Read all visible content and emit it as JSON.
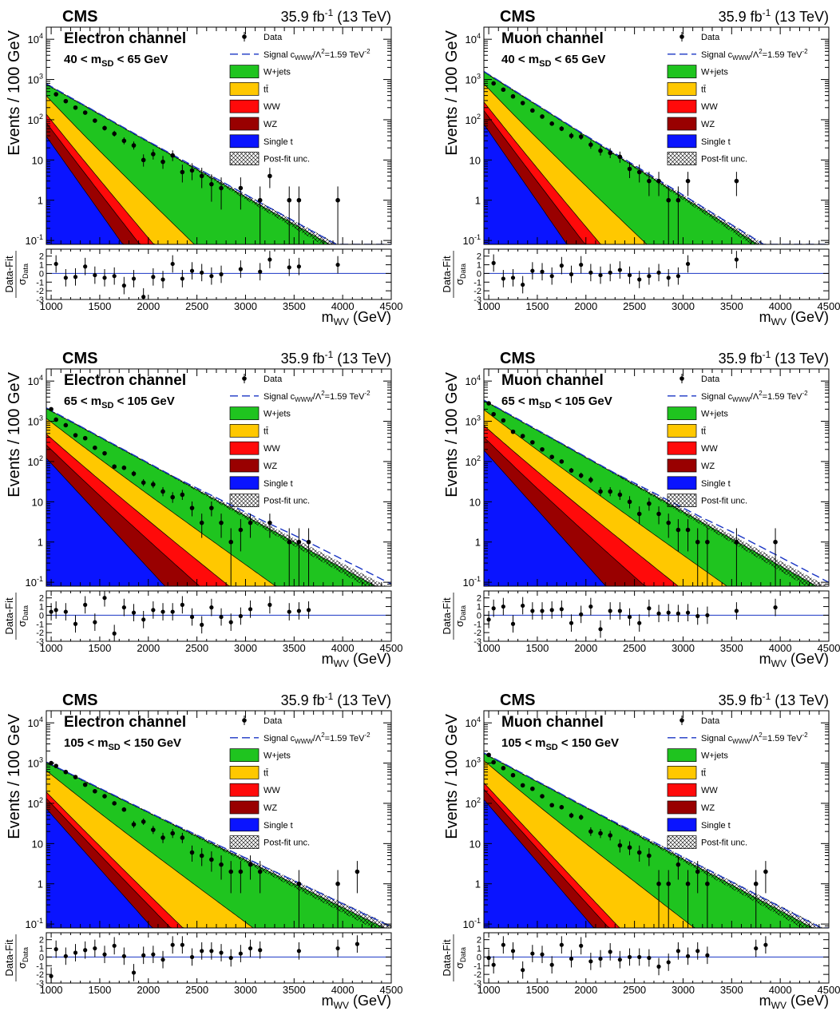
{
  "common": {
    "experiment": "CMS",
    "lumi": "35.9 fb",
    "lumi_sup": "-1",
    "energy": "(13 TeV)",
    "ylabel": "Events / 100 GeV",
    "xlabel_main": "m",
    "xlabel_sub": "WV",
    "xlabel_unit": "(GeV)",
    "ratio_label_top": "Data-Fit",
    "ratio_label_bottom_main": "σ",
    "ratio_label_bottom_sub": "Data",
    "x_ticks": [
      1000,
      1500,
      2000,
      2500,
      3000,
      3500,
      4000,
      4500
    ],
    "y_ticks": [
      {
        "value": 0.1,
        "label": "10",
        "sup": "-1"
      },
      {
        "value": 1,
        "label": "1",
        "sup": ""
      },
      {
        "value": 10,
        "label": "10",
        "sup": ""
      },
      {
        "value": 100,
        "label": "10",
        "sup": "2"
      },
      {
        "value": 1000,
        "label": "10",
        "sup": "3"
      },
      {
        "value": 10000,
        "label": "10",
        "sup": "4"
      }
    ],
    "ratio_ticks": [
      2,
      1,
      0,
      -1,
      -2,
      -3
    ],
    "xlim": [
      950,
      4500
    ],
    "ylim": [
      0.08,
      20000
    ],
    "ratio_ylim": [
      -3,
      2.8
    ],
    "legend": [
      {
        "label": "Data",
        "kind": "data"
      },
      {
        "label": "Signal c",
        "sub": "WWW",
        "rest": "/Λ",
        "sup": "2",
        "tail": "=1.59 TeV",
        "tailsup": "-2",
        "kind": "signal",
        "color": "#1a35c4"
      },
      {
        "label": "W+jets",
        "kind": "fill",
        "color": "#1fc41f"
      },
      {
        "label": "tt̄",
        "kind": "fill",
        "color": "#ffc800"
      },
      {
        "label": "WW",
        "kind": "fill",
        "color": "#ff0a0a"
      },
      {
        "label": "WZ",
        "kind": "fill",
        "color": "#990000"
      },
      {
        "label": "Single t",
        "kind": "fill",
        "color": "#0a14ff"
      },
      {
        "label": "Post-fit unc.",
        "kind": "hatch"
      }
    ]
  },
  "chart_data": [
    {
      "type": "area",
      "channel": "Electron channel",
      "cut": {
        "lo": "40",
        "var": "m",
        "sub": "SD",
        "hi": "65",
        "unit": "GeV"
      },
      "log_y": true,
      "model": {
        "n0": 650,
        "decay": 0.00314,
        "signal_mult": 1.12,
        "sig_start": 2000,
        "fractions": {
          "tt": 0.3,
          "ww": 0.06,
          "wz": 0.05,
          "st": 0.04
        },
        "slopes": {
          "tt": 1.7,
          "ww": 2.0,
          "wz": 2.2,
          "st": 2.5
        }
      },
      "data_points": [
        {
          "x": 1050,
          "y": 430,
          "r": 1.1
        },
        {
          "x": 1150,
          "y": 290,
          "r": -0.5
        },
        {
          "x": 1250,
          "y": 200,
          "r": -0.4
        },
        {
          "x": 1350,
          "y": 150,
          "r": 0.8
        },
        {
          "x": 1450,
          "y": 95,
          "r": -0.2
        },
        {
          "x": 1550,
          "y": 62,
          "r": -0.5
        },
        {
          "x": 1650,
          "y": 45,
          "r": -0.3
        },
        {
          "x": 1750,
          "y": 30,
          "r": -1.4
        },
        {
          "x": 1850,
          "y": 23,
          "r": -0.6
        },
        {
          "x": 1950,
          "y": 10,
          "r": -2.7
        },
        {
          "x": 2050,
          "y": 14,
          "r": -0.4
        },
        {
          "x": 2150,
          "y": 9,
          "r": -0.7
        },
        {
          "x": 2250,
          "y": 13,
          "r": 1.1
        },
        {
          "x": 2350,
          "y": 5,
          "r": -0.6
        },
        {
          "x": 2450,
          "y": 5.5,
          "r": 0.3
        },
        {
          "x": 2550,
          "y": 4,
          "r": 0.1
        },
        {
          "x": 2650,
          "y": 2.5,
          "r": -0.3
        },
        {
          "x": 2750,
          "y": 2,
          "r": -0.1
        },
        {
          "x": 2950,
          "y": 2,
          "r": 0.5
        },
        {
          "x": 3150,
          "y": 1,
          "r": 0.2
        },
        {
          "x": 3250,
          "y": 4,
          "r": 1.6
        },
        {
          "x": 3450,
          "y": 1,
          "r": 0.7
        },
        {
          "x": 3550,
          "y": 1,
          "r": 0.8
        },
        {
          "x": 3950,
          "y": 1,
          "r": 1.0
        }
      ]
    },
    {
      "type": "area",
      "channel": "Muon channel",
      "cut": {
        "lo": "40",
        "var": "m",
        "sub": "SD",
        "hi": "65",
        "unit": "GeV"
      },
      "log_y": true,
      "model": {
        "n0": 1300,
        "decay": 0.0035,
        "signal_mult": 1.12,
        "sig_start": 2000,
        "fractions": {
          "tt": 0.3,
          "ww": 0.06,
          "wz": 0.05,
          "st": 0.04
        },
        "slopes": {
          "tt": 1.5,
          "ww": 1.8,
          "wz": 2.0,
          "st": 2.3
        }
      },
      "data_points": [
        {
          "x": 1050,
          "y": 800,
          "r": 1.2
        },
        {
          "x": 1150,
          "y": 560,
          "r": -0.6
        },
        {
          "x": 1250,
          "y": 380,
          "r": -0.5
        },
        {
          "x": 1350,
          "y": 260,
          "r": -1.3
        },
        {
          "x": 1450,
          "y": 170,
          "r": 0.3
        },
        {
          "x": 1550,
          "y": 120,
          "r": 0.2
        },
        {
          "x": 1650,
          "y": 80,
          "r": -0.3
        },
        {
          "x": 1750,
          "y": 60,
          "r": 0.9
        },
        {
          "x": 1850,
          "y": 40,
          "r": -0.1
        },
        {
          "x": 1950,
          "y": 38,
          "r": 1.0
        },
        {
          "x": 2050,
          "y": 24,
          "r": 0.1
        },
        {
          "x": 2150,
          "y": 17,
          "r": -0.2
        },
        {
          "x": 2250,
          "y": 15,
          "r": 0.1
        },
        {
          "x": 2350,
          "y": 12,
          "r": 0.4
        },
        {
          "x": 2450,
          "y": 6,
          "r": -0.2
        },
        {
          "x": 2550,
          "y": 5,
          "r": -0.7
        },
        {
          "x": 2650,
          "y": 3,
          "r": -0.3
        },
        {
          "x": 2750,
          "y": 3,
          "r": 0.1
        },
        {
          "x": 2850,
          "y": 1,
          "r": -0.5
        },
        {
          "x": 2950,
          "y": 1,
          "r": -0.3
        },
        {
          "x": 3050,
          "y": 3,
          "r": 1.1
        },
        {
          "x": 3550,
          "y": 3,
          "r": 1.6
        }
      ]
    },
    {
      "type": "area",
      "channel": "Electron channel",
      "cut": {
        "lo": "65",
        "var": "m",
        "sub": "SD",
        "hi": "105",
        "unit": "GeV"
      },
      "log_y": true,
      "model": {
        "n0": 1800,
        "decay": 0.003,
        "signal_mult": 1.35,
        "sig_start": 2300,
        "fractions": {
          "tt": 0.32,
          "ww": 0.1,
          "wz": 0.06,
          "st": 0.05
        },
        "slopes": {
          "tt": 1.3,
          "ww": 1.45,
          "wz": 1.6,
          "st": 2.0
        }
      },
      "data_points": [
        {
          "x": 1000,
          "y": 2000,
          "r": 0.4
        },
        {
          "x": 1050,
          "y": 1100,
          "r": 0.6
        },
        {
          "x": 1150,
          "y": 800,
          "r": 0.4
        },
        {
          "x": 1250,
          "y": 450,
          "r": -1.0
        },
        {
          "x": 1350,
          "y": 380,
          "r": 1.2
        },
        {
          "x": 1450,
          "y": 220,
          "r": -0.8
        },
        {
          "x": 1550,
          "y": 160,
          "r": 2.0
        },
        {
          "x": 1650,
          "y": 75,
          "r": -2.1
        },
        {
          "x": 1750,
          "y": 70,
          "r": 0.9
        },
        {
          "x": 1850,
          "y": 50,
          "r": 0.3
        },
        {
          "x": 1950,
          "y": 30,
          "r": -0.5
        },
        {
          "x": 2050,
          "y": 27,
          "r": 0.6
        },
        {
          "x": 2150,
          "y": 18,
          "r": 0.4
        },
        {
          "x": 2250,
          "y": 13,
          "r": 0.4
        },
        {
          "x": 2350,
          "y": 15,
          "r": 1.2
        },
        {
          "x": 2450,
          "y": 7,
          "r": -0.2
        },
        {
          "x": 2550,
          "y": 3,
          "r": -1.1
        },
        {
          "x": 2650,
          "y": 7,
          "r": 0.9
        },
        {
          "x": 2750,
          "y": 3,
          "r": -0.2
        },
        {
          "x": 2850,
          "y": 1,
          "r": -0.8
        },
        {
          "x": 2950,
          "y": 2,
          "r": -0.1
        },
        {
          "x": 3050,
          "y": 3,
          "r": 0.7
        },
        {
          "x": 3250,
          "y": 3,
          "r": 1.2
        },
        {
          "x": 3450,
          "y": 1,
          "r": 0.4
        },
        {
          "x": 3550,
          "y": 1,
          "r": 0.5
        },
        {
          "x": 3650,
          "y": 1,
          "r": 0.6
        }
      ]
    },
    {
      "type": "area",
      "channel": "Muon channel",
      "cut": {
        "lo": "65",
        "var": "m",
        "sub": "SD",
        "hi": "105",
        "unit": "GeV"
      },
      "log_y": true,
      "model": {
        "n0": 2800,
        "decay": 0.0031,
        "signal_mult": 1.35,
        "sig_start": 2300,
        "fractions": {
          "tt": 0.34,
          "ww": 0.11,
          "wz": 0.06,
          "st": 0.05
        },
        "slopes": {
          "tt": 1.25,
          "ww": 1.4,
          "wz": 1.55,
          "st": 2.0
        }
      },
      "data_points": [
        {
          "x": 1000,
          "y": 2800,
          "r": -0.5
        },
        {
          "x": 1050,
          "y": 1500,
          "r": 0.8
        },
        {
          "x": 1150,
          "y": 1050,
          "r": 1.0
        },
        {
          "x": 1250,
          "y": 550,
          "r": -1.0
        },
        {
          "x": 1350,
          "y": 430,
          "r": 1.1
        },
        {
          "x": 1450,
          "y": 300,
          "r": 0.5
        },
        {
          "x": 1550,
          "y": 200,
          "r": 0.5
        },
        {
          "x": 1650,
          "y": 130,
          "r": 0.6
        },
        {
          "x": 1750,
          "y": 100,
          "r": 0.7
        },
        {
          "x": 1850,
          "y": 60,
          "r": -0.9
        },
        {
          "x": 1950,
          "y": 45,
          "r": 0.1
        },
        {
          "x": 2050,
          "y": 35,
          "r": 1.0
        },
        {
          "x": 2150,
          "y": 18,
          "r": -1.6
        },
        {
          "x": 2250,
          "y": 18,
          "r": 0.5
        },
        {
          "x": 2350,
          "y": 15,
          "r": 0.5
        },
        {
          "x": 2450,
          "y": 10,
          "r": -0.2
        },
        {
          "x": 2550,
          "y": 5,
          "r": -0.9
        },
        {
          "x": 2650,
          "y": 9,
          "r": 0.8
        },
        {
          "x": 2750,
          "y": 5,
          "r": 0.2
        },
        {
          "x": 2850,
          "y": 3,
          "r": 0.3
        },
        {
          "x": 2950,
          "y": 2,
          "r": 0.2
        },
        {
          "x": 3050,
          "y": 2,
          "r": 0.3
        },
        {
          "x": 3150,
          "y": 1,
          "r": -0.1
        },
        {
          "x": 3250,
          "y": 1,
          "r": 0.0
        },
        {
          "x": 3550,
          "y": 1,
          "r": 0.5
        },
        {
          "x": 3950,
          "y": 1,
          "r": 0.9
        }
      ]
    },
    {
      "type": "area",
      "channel": "Electron channel",
      "cut": {
        "lo": "105",
        "var": "m",
        "sub": "SD",
        "hi": "150",
        "unit": "GeV"
      },
      "log_y": true,
      "model": {
        "n0": 900,
        "decay": 0.00272,
        "signal_mult": 1.12,
        "sig_start": 2100,
        "fractions": {
          "tt": 0.42,
          "ww": 0.05,
          "wz": 0.05,
          "st": 0.06
        },
        "slopes": {
          "tt": 1.5,
          "ww": 1.9,
          "wz": 2.0,
          "st": 2.3
        }
      },
      "data_points": [
        {
          "x": 1000,
          "y": 1000,
          "r": -2.2
        },
        {
          "x": 1050,
          "y": 850,
          "r": 0.9
        },
        {
          "x": 1150,
          "y": 600,
          "r": 0.1
        },
        {
          "x": 1250,
          "y": 450,
          "r": 0.5
        },
        {
          "x": 1350,
          "y": 290,
          "r": 0.8
        },
        {
          "x": 1450,
          "y": 200,
          "r": 1.0
        },
        {
          "x": 1550,
          "y": 150,
          "r": 0.3
        },
        {
          "x": 1650,
          "y": 100,
          "r": 1.3
        },
        {
          "x": 1750,
          "y": 70,
          "r": 0.1
        },
        {
          "x": 1850,
          "y": 30,
          "r": -1.8
        },
        {
          "x": 1950,
          "y": 35,
          "r": 0.2
        },
        {
          "x": 2050,
          "y": 22,
          "r": 0.3
        },
        {
          "x": 2150,
          "y": 14,
          "r": -0.3
        },
        {
          "x": 2250,
          "y": 18,
          "r": 1.4
        },
        {
          "x": 2350,
          "y": 14,
          "r": 1.4
        },
        {
          "x": 2450,
          "y": 6,
          "r": 0.0
        },
        {
          "x": 2550,
          "y": 5,
          "r": 0.7
        },
        {
          "x": 2650,
          "y": 4,
          "r": 0.7
        },
        {
          "x": 2750,
          "y": 3,
          "r": 0.5
        },
        {
          "x": 2850,
          "y": 2,
          "r": -0.1
        },
        {
          "x": 2950,
          "y": 2,
          "r": 0.4
        },
        {
          "x": 3050,
          "y": 3,
          "r": 1.0
        },
        {
          "x": 3150,
          "y": 2,
          "r": 0.8
        },
        {
          "x": 3550,
          "y": 1,
          "r": 0.7
        },
        {
          "x": 3950,
          "y": 1,
          "r": 1.0
        },
        {
          "x": 4150,
          "y": 2,
          "r": 1.5
        }
      ]
    },
    {
      "type": "area",
      "channel": "Muon channel",
      "cut": {
        "lo": "105",
        "var": "m",
        "sub": "SD",
        "hi": "150",
        "unit": "GeV"
      },
      "log_y": true,
      "model": {
        "n0": 1500,
        "decay": 0.00295,
        "signal_mult": 1.12,
        "sig_start": 2100,
        "fractions": {
          "tt": 0.45,
          "ww": 0.05,
          "wz": 0.05,
          "st": 0.06
        },
        "slopes": {
          "tt": 1.45,
          "ww": 1.9,
          "wz": 2.0,
          "st": 2.2
        }
      },
      "data_points": [
        {
          "x": 1000,
          "y": 1600,
          "r": -0.1
        },
        {
          "x": 1050,
          "y": 1050,
          "r": -0.9
        },
        {
          "x": 1150,
          "y": 750,
          "r": 1.4
        },
        {
          "x": 1250,
          "y": 500,
          "r": 0.7
        },
        {
          "x": 1350,
          "y": 280,
          "r": -1.5
        },
        {
          "x": 1450,
          "y": 230,
          "r": 0.4
        },
        {
          "x": 1550,
          "y": 150,
          "r": 0.3
        },
        {
          "x": 1650,
          "y": 90,
          "r": -0.9
        },
        {
          "x": 1750,
          "y": 80,
          "r": 1.4
        },
        {
          "x": 1850,
          "y": 50,
          "r": -0.2
        },
        {
          "x": 1950,
          "y": 45,
          "r": 1.3
        },
        {
          "x": 2050,
          "y": 20,
          "r": -0.5
        },
        {
          "x": 2150,
          "y": 18,
          "r": -0.2
        },
        {
          "x": 2250,
          "y": 16,
          "r": 0.6
        },
        {
          "x": 2350,
          "y": 9,
          "r": -0.3
        },
        {
          "x": 2450,
          "y": 8,
          "r": 0.0
        },
        {
          "x": 2550,
          "y": 6,
          "r": 0.0
        },
        {
          "x": 2650,
          "y": 5,
          "r": -0.1
        },
        {
          "x": 2750,
          "y": 1,
          "r": -1.1
        },
        {
          "x": 2850,
          "y": 1,
          "r": -0.6
        },
        {
          "x": 2950,
          "y": 3,
          "r": 0.7
        },
        {
          "x": 3050,
          "y": 1,
          "r": 0.1
        },
        {
          "x": 3150,
          "y": 2,
          "r": 0.7
        },
        {
          "x": 3250,
          "y": 1,
          "r": 0.2
        },
        {
          "x": 3750,
          "y": 1,
          "r": 1.0
        },
        {
          "x": 3850,
          "y": 2,
          "r": 1.4
        }
      ]
    }
  ]
}
